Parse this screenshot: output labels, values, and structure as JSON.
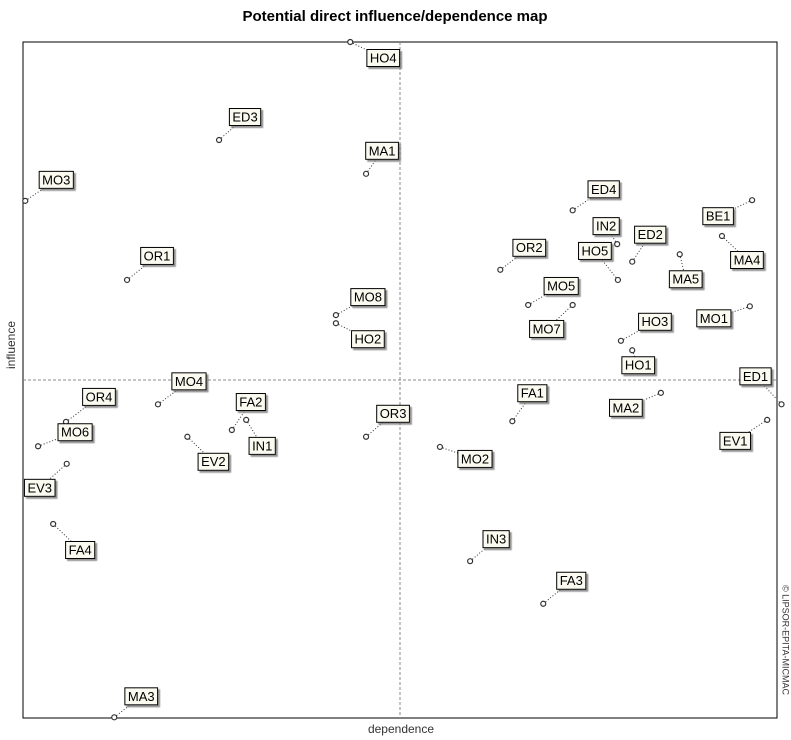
{
  "chart_data": {
    "type": "scatter",
    "title": "Potential direct influence/dependence map",
    "x_label": "dependence",
    "y_label": "influence",
    "credit": "© LIPSOR-EPITA-MICMAC",
    "xlim": [
      0,
      100
    ],
    "ylim": [
      0,
      100
    ],
    "color": "#333333",
    "labels": [
      "HO4",
      "ED3",
      "MA1",
      "MO3",
      "ED4",
      "BE1",
      "IN2",
      "ED2",
      "HO5",
      "OR2",
      "MA5",
      "MA4",
      "OR1",
      "MO5",
      "MO8",
      "MO7",
      "MO1",
      "HO3",
      "HO2",
      "HO1",
      "ED1",
      "MO4",
      "OR4",
      "FA1",
      "MA2",
      "FA2",
      "OR3",
      "MO6",
      "IN1",
      "EV1",
      "EV2",
      "MO2",
      "EV3",
      "FA4",
      "IN3",
      "FA3",
      "MA3"
    ],
    "x": [
      43.4,
      26.0,
      45.5,
      0.3,
      72.9,
      96.7,
      78.8,
      80.8,
      78.9,
      63.3,
      87.1,
      92.7,
      13.8,
      67.0,
      41.5,
      72.9,
      96.4,
      79.3,
      41.5,
      80.8,
      100.6,
      17.9,
      5.7,
      64.9,
      84.6,
      27.7,
      45.5,
      2.0,
      29.6,
      98.7,
      21.8,
      55.3,
      5.8,
      4.0,
      59.3,
      69.0,
      12.1
    ],
    "y": [
      100.0,
      85.5,
      80.5,
      76.5,
      75.1,
      76.6,
      70.1,
      67.5,
      64.8,
      66.3,
      68.6,
      71.3,
      64.8,
      61.1,
      59.6,
      61.1,
      60.9,
      55.8,
      58.4,
      54.4,
      46.4,
      46.4,
      43.8,
      43.9,
      48.1,
      42.6,
      41.6,
      40.2,
      44.1,
      44.1,
      41.6,
      40.1,
      37.6,
      28.7,
      23.2,
      16.9,
      0.1
    ]
  }
}
